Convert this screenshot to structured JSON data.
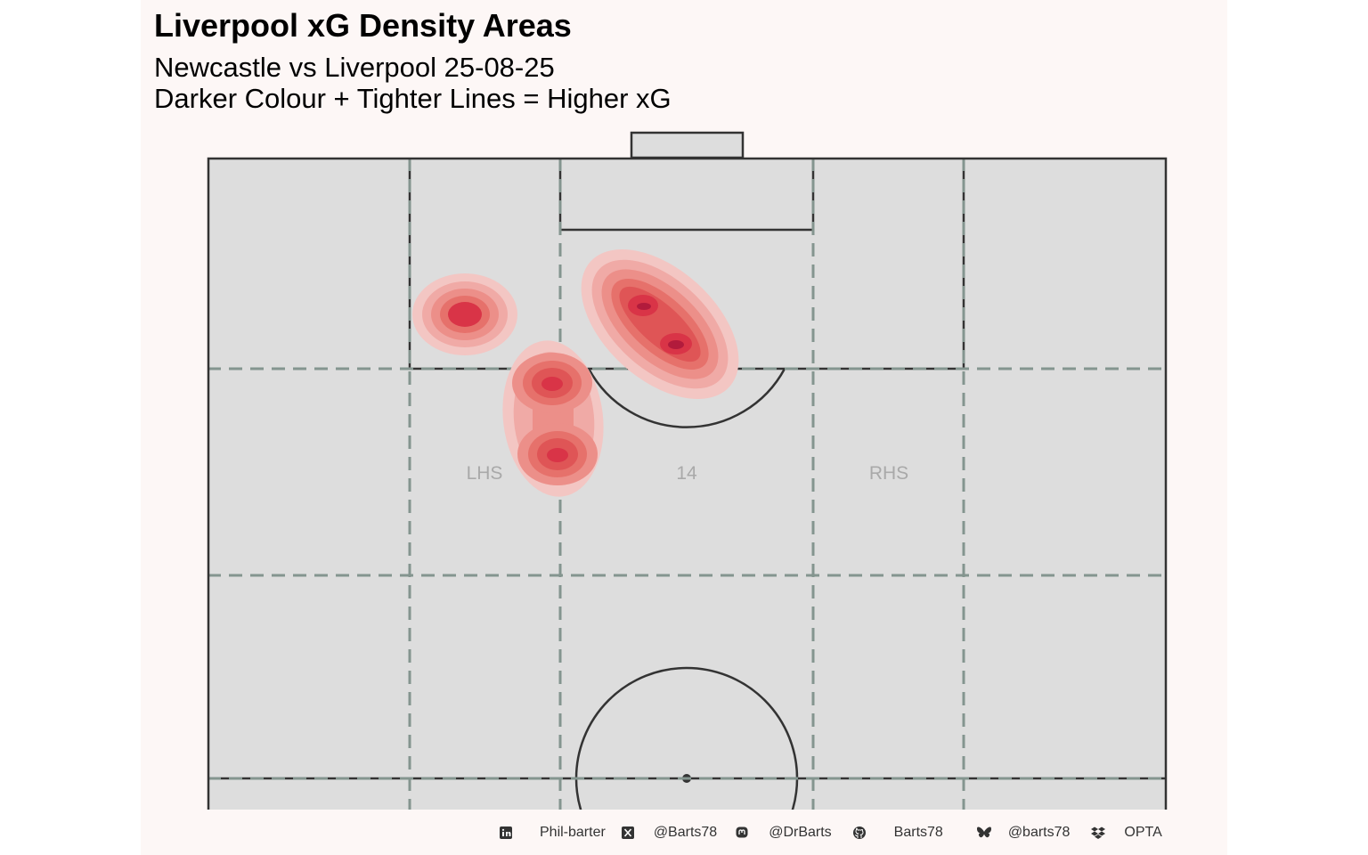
{
  "header": {
    "title": "Liverpool xG Density Areas",
    "subtitle_line1": "Newcastle vs Liverpool 25-08-25",
    "subtitle_line2": "Darker Colour + Tighter Lines = Higher xG"
  },
  "pitch": {
    "zone_labels": {
      "lhs": "LHS",
      "center": "14",
      "rhs": "RHS"
    }
  },
  "density_colors": [
    "#f3c6c3",
    "#f0aaa6",
    "#ec8f89",
    "#e6716b",
    "#df5556",
    "#d93447",
    "#b21b3c"
  ],
  "footer": {
    "linkedin_icon": "linkedin-icon",
    "linkedin": "Phil-barter",
    "x_icon": "x-icon",
    "x": "@Barts78",
    "mastodon_icon": "mastodon-icon",
    "mastodon": "@DrBarts",
    "github_icon": "github-icon",
    "github": "Barts78",
    "bluesky_icon": "bluesky-icon",
    "bluesky": "@barts78",
    "dropbox_icon": "dropbox-icon",
    "source": "OPTA"
  }
}
